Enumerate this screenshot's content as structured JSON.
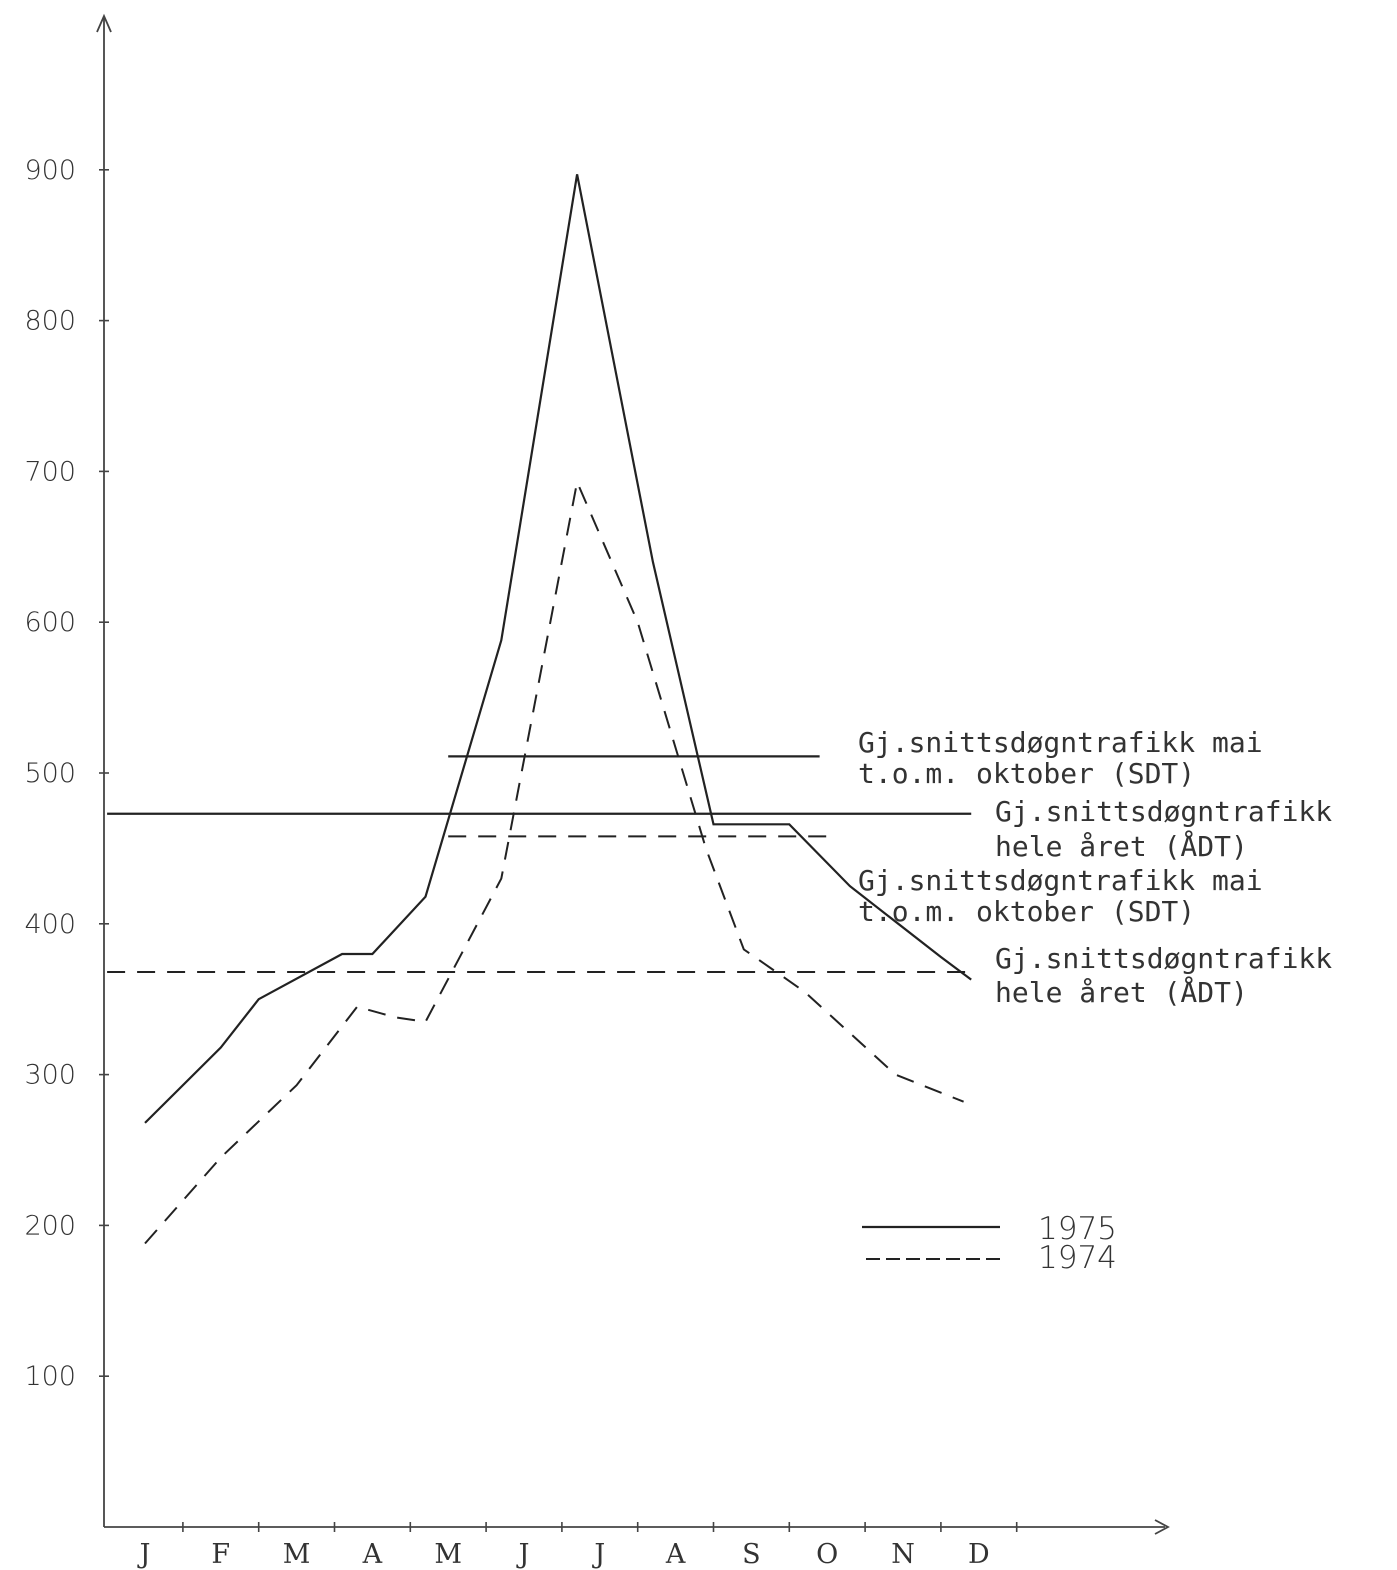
{
  "chart_data": {
    "type": "line",
    "categories": [
      "J",
      "F",
      "M",
      "A",
      "M",
      "J",
      "J",
      "A",
      "S",
      "O",
      "N",
      "D"
    ],
    "ylim": [
      0,
      900
    ],
    "yticks": [
      100,
      200,
      300,
      400,
      500,
      600,
      700,
      800,
      900
    ],
    "series": [
      {
        "name": "1975",
        "style": "solid",
        "x": [
          0,
          1,
          1.5,
          2.6,
          3.0,
          3.7,
          4.7,
          5.7,
          6.7,
          7.5,
          8.5,
          9.3,
          10.5,
          10.9
        ],
        "values": [
          268,
          318,
          350,
          380,
          380,
          418,
          588,
          897,
          640,
          466,
          466,
          425,
          378,
          363
        ]
      },
      {
        "name": "1974",
        "style": "dashed",
        "x": [
          0,
          1,
          2,
          2.8,
          3.3,
          3.7,
          4.7,
          5.7,
          6.5,
          7.4,
          7.9,
          8.7,
          9.9,
          10.8
        ],
        "values": [
          188,
          245,
          293,
          345,
          338,
          335,
          430,
          693,
          600,
          450,
          383,
          355,
          300,
          282
        ]
      }
    ],
    "reference_lines": [
      {
        "series": "1975",
        "measure": "SDT",
        "value": 511,
        "x_start": 4.0,
        "x_end": 8.9,
        "style": "solid"
      },
      {
        "series": "1975",
        "measure": "ÅDT",
        "value": 473,
        "x_start": -0.5,
        "x_end": 10.9,
        "style": "solid"
      },
      {
        "series": "1974",
        "measure": "SDT",
        "value": 458,
        "x_start": 4.0,
        "x_end": 9.0,
        "style": "dashed"
      },
      {
        "series": "1974",
        "measure": "ÅDT",
        "value": 368,
        "x_start": -0.5,
        "x_end": 10.9,
        "style": "dashed"
      }
    ],
    "annotations": [
      {
        "line1": "Gj.snittsdøgntrafikk mai",
        "line2": "t.o.m. oktober (SDT)"
      },
      {
        "line1": "Gj.snittsdøgntrafikk",
        "line2": "hele året (ÅDT)"
      },
      {
        "line1": "Gj.snittsdøgntrafikk mai",
        "line2": "t.o.m. oktober (SDT)"
      },
      {
        "line1": "Gj.snittsdøgntrafikk",
        "line2": "hele året (ÅDT)"
      }
    ],
    "legend": {
      "position": "lower-right",
      "items": [
        {
          "label": "1975",
          "style": "solid"
        },
        {
          "label": "1974",
          "style": "dashed"
        }
      ]
    }
  }
}
